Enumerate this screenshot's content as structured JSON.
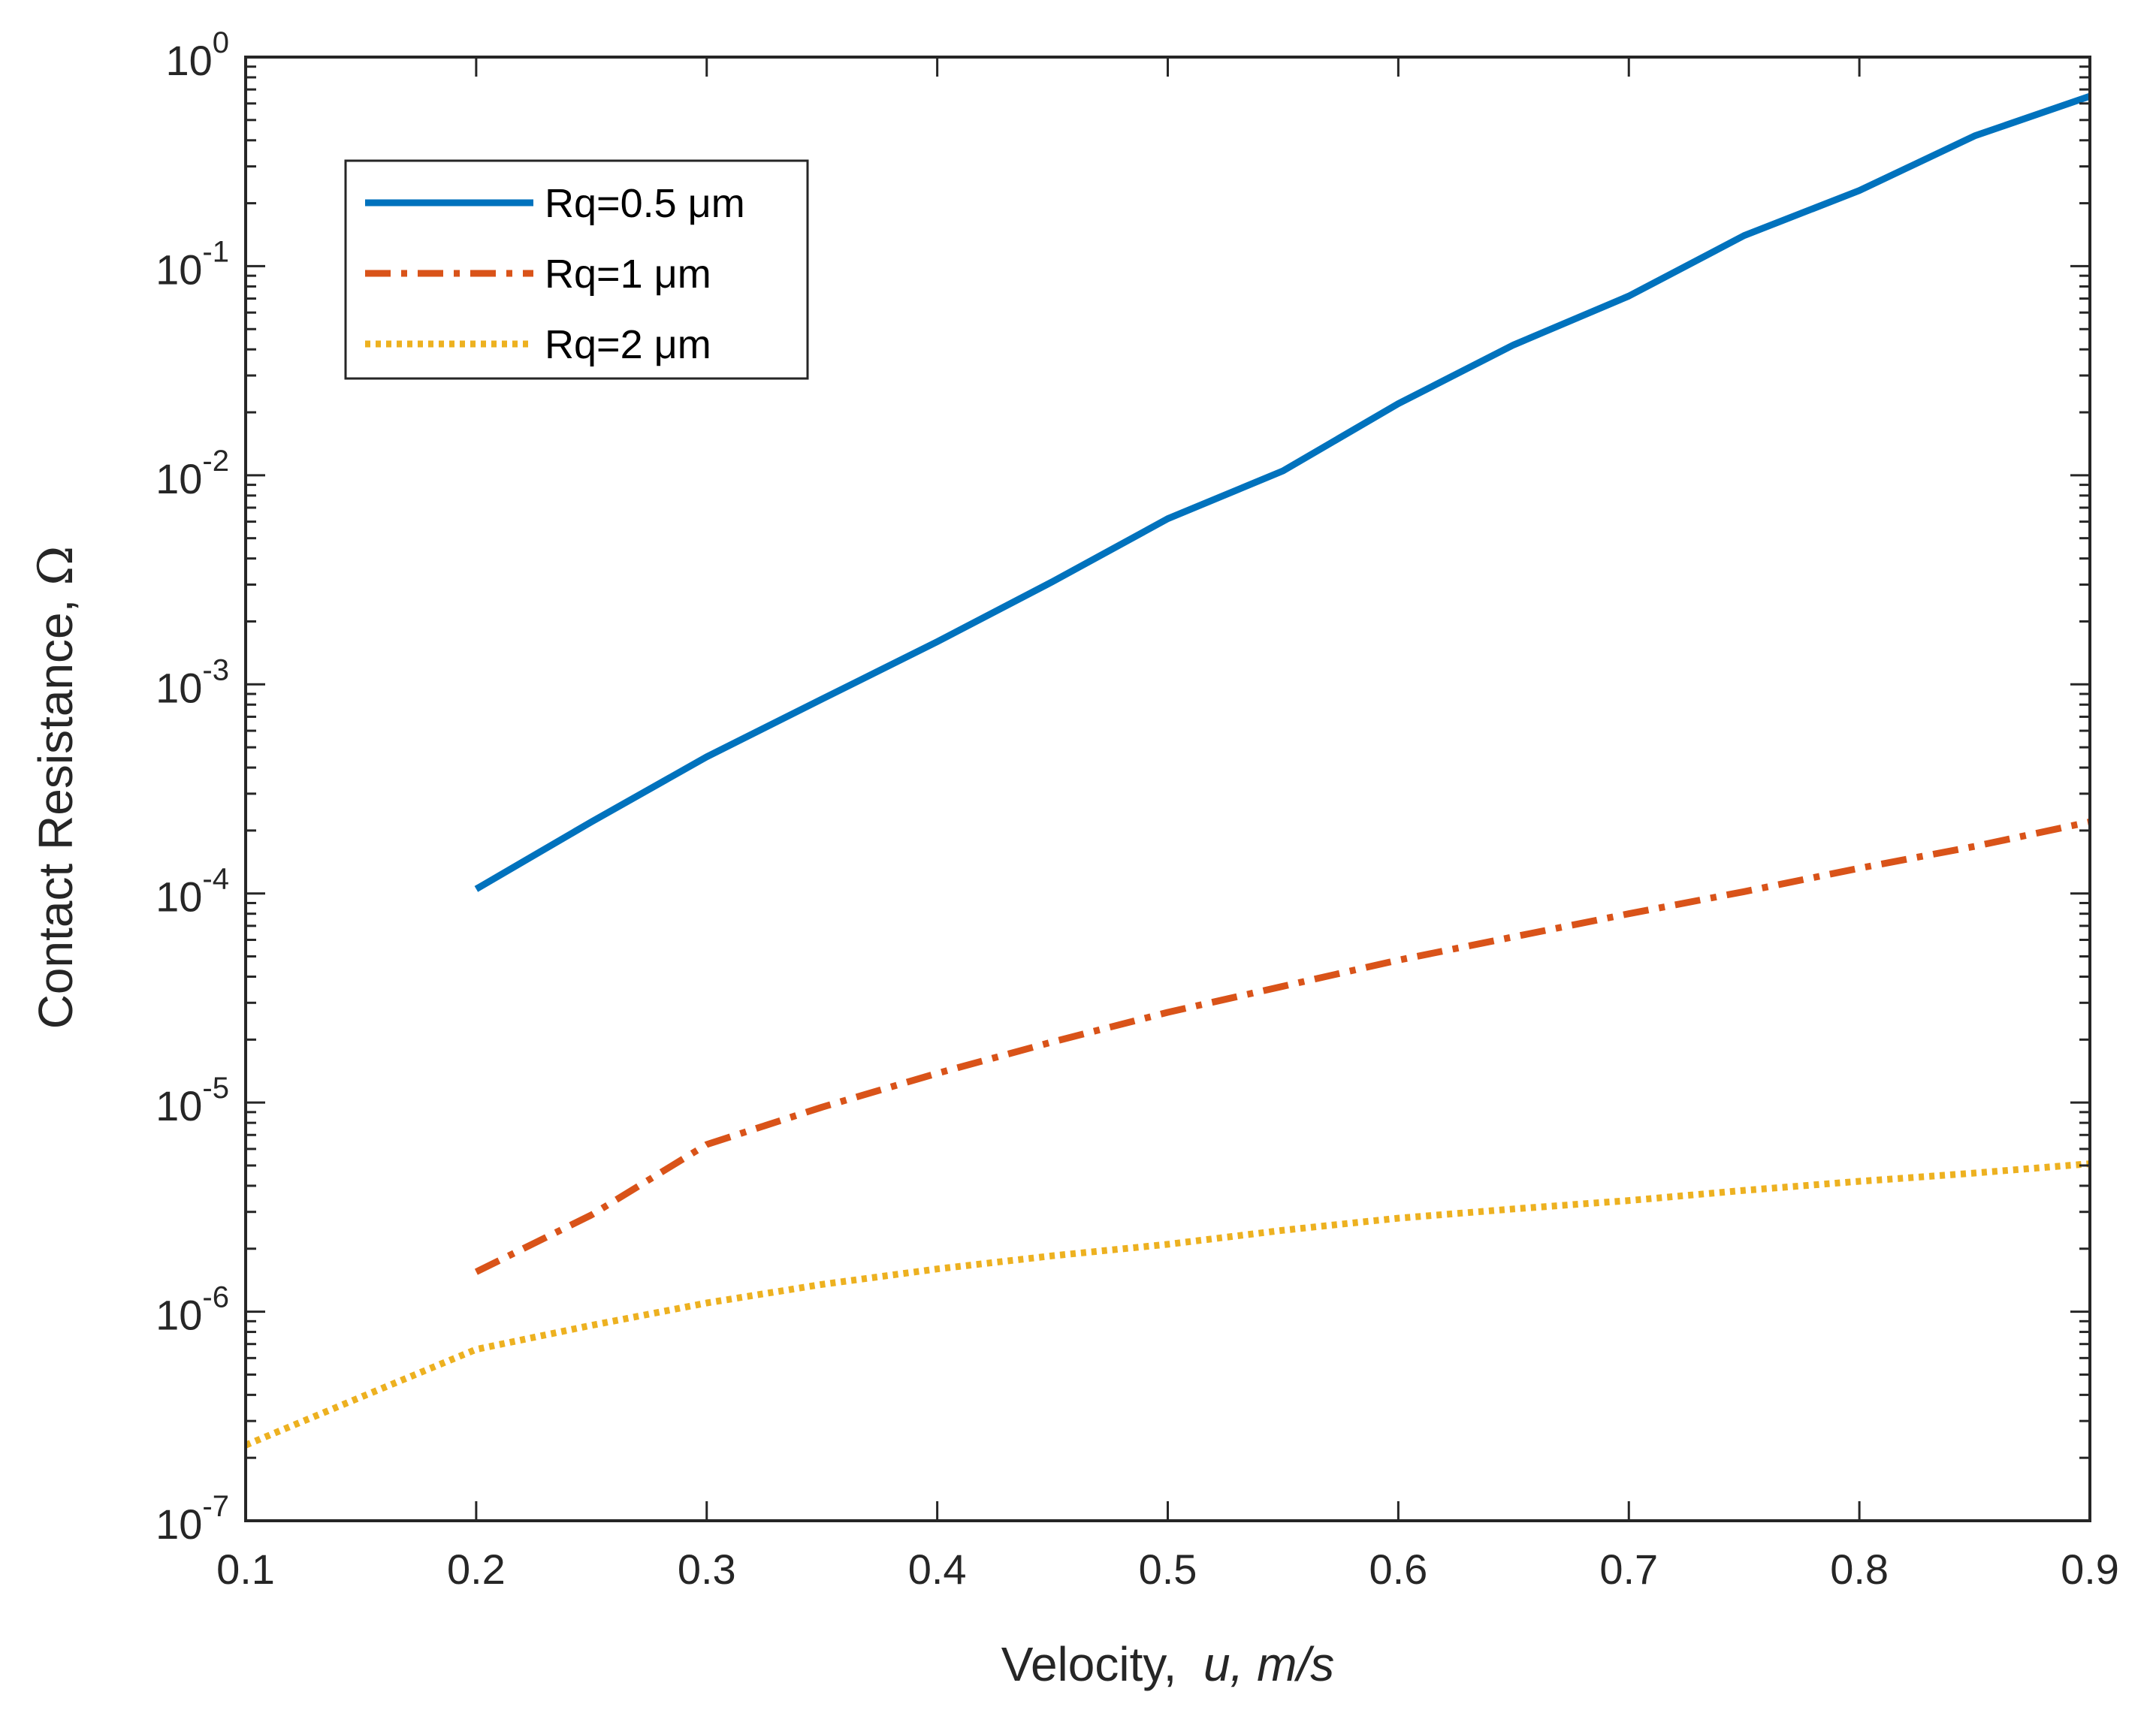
{
  "chart_data": {
    "type": "line",
    "title": "",
    "xlabel": "Velocity,  u, m/s",
    "xlabel_parts": {
      "prefix": "Velocity,  ",
      "italic": "u, m/s"
    },
    "ylabel": "Contact Resistance, Ω",
    "ylabel_parts": {
      "prefix": "Contact Resistance, ",
      "symbol": "Ω"
    },
    "xlim": [
      0.1,
      0.9
    ],
    "ylim": [
      1e-07,
      1
    ],
    "yscale": "log",
    "xticks": [
      "0.1",
      "0.2",
      "0.3",
      "0.4",
      "0.5",
      "0.6",
      "0.7",
      "0.8",
      "0.9"
    ],
    "yticks": [
      {
        "base": "10",
        "exp": "-7"
      },
      {
        "base": "10",
        "exp": "-6"
      },
      {
        "base": "10",
        "exp": "-5"
      },
      {
        "base": "10",
        "exp": "-4"
      },
      {
        "base": "10",
        "exp": "-3"
      },
      {
        "base": "10",
        "exp": "-2"
      },
      {
        "base": "10",
        "exp": "-1"
      },
      {
        "base": "10",
        "exp": "0"
      }
    ],
    "grid": false,
    "legend_position": "top-left",
    "series": [
      {
        "name": "Rq=0.5 μm",
        "label_prefix": "Rq=0.5 ",
        "label_unit": "μm",
        "color": "#0072BD",
        "line_style": "solid",
        "x": [
          0.2,
          0.25,
          0.3,
          0.35,
          0.4,
          0.45,
          0.5,
          0.55,
          0.6,
          0.65,
          0.7,
          0.75,
          0.8,
          0.85,
          0.9
        ],
        "y": [
          0.000105,
          0.00022,
          0.00045,
          0.00085,
          0.0016,
          0.0031,
          0.0062,
          0.0105,
          0.022,
          0.042,
          0.072,
          0.14,
          0.23,
          0.42,
          0.65
        ]
      },
      {
        "name": "Rq=1 μm",
        "label_prefix": "Rq=1 ",
        "label_unit": "μm",
        "color": "#D95319",
        "line_style": "dashdot",
        "x": [
          0.2,
          0.25,
          0.3,
          0.35,
          0.4,
          0.45,
          0.5,
          0.55,
          0.6,
          0.65,
          0.7,
          0.75,
          0.8,
          0.85,
          0.9
        ],
        "y": [
          1.55e-06,
          2.9e-06,
          6.3e-06,
          9.5e-06,
          1.38e-05,
          1.95e-05,
          2.7e-05,
          3.6e-05,
          4.8e-05,
          6.2e-05,
          8e-05,
          0.000102,
          0.000132,
          0.000168,
          0.00022
        ]
      },
      {
        "name": "Rq=2 μm",
        "label_prefix": "Rq=2 ",
        "label_unit": "μm",
        "color": "#EDB120",
        "line_style": "dotted",
        "x": [
          0.1,
          0.15,
          0.2,
          0.25,
          0.3,
          0.35,
          0.4,
          0.45,
          0.5,
          0.55,
          0.6,
          0.65,
          0.7,
          0.75,
          0.8,
          0.85,
          0.9
        ],
        "y": [
          2.3e-07,
          3.9e-07,
          6.6e-07,
          8.6e-07,
          1.1e-06,
          1.35e-06,
          1.6e-06,
          1.85e-06,
          2.1e-06,
          2.45e-06,
          2.8e-06,
          3.1e-06,
          3.4e-06,
          3.8e-06,
          4.2e-06,
          4.6e-06,
          5.1e-06
        ]
      }
    ]
  }
}
